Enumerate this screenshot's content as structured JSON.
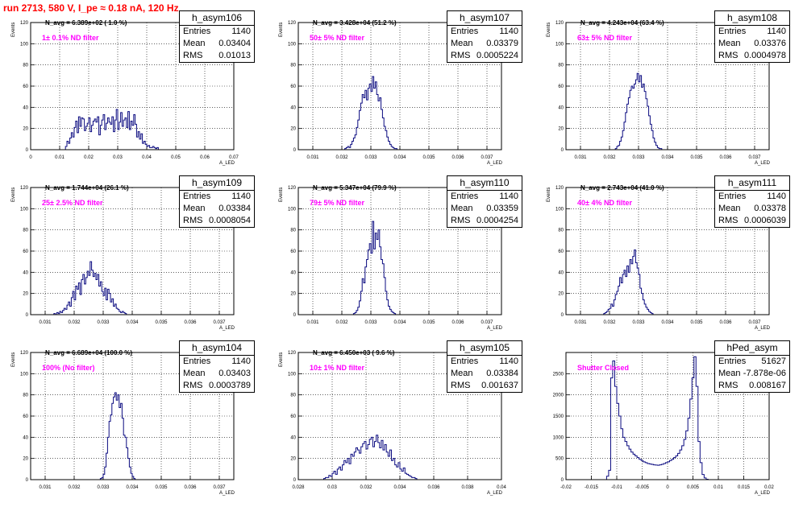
{
  "header": {
    "run_label": "run 2713,   580 V, I_pe ≈ 0.18 nA, 120 Hz"
  },
  "chart_data": [
    {
      "type": "histogram",
      "name": "h_asym106",
      "stats": {
        "entries_label": "Entries",
        "entries": "1140",
        "mean_label": "Mean",
        "mean": "0.03404",
        "rms_label": "RMS",
        "rms": "0.01013"
      },
      "n_avg_label": "N_avg = 6.389e+02 ( 1.0 %)",
      "filter_label": "1± 0.1% ND filter",
      "xlabel": "A_LED",
      "ylabel": "Events",
      "xlim": [
        0,
        0.07
      ],
      "ylim": [
        0,
        120
      ],
      "xticks": [
        "0",
        "0.01",
        "0.02",
        "0.03",
        "0.04",
        "0.05",
        "0.06",
        "0.07"
      ],
      "yticks": [
        "0",
        "20",
        "40",
        "60",
        "80",
        "100",
        "120"
      ],
      "bin_start": 0.012,
      "bin_width": 0.0005,
      "values": [
        3,
        8,
        6,
        11,
        16,
        12,
        21,
        27,
        16,
        31,
        22,
        30,
        29,
        18,
        22,
        25,
        30,
        17,
        23,
        27,
        29,
        26,
        31,
        14,
        23,
        28,
        33,
        19,
        25,
        30,
        26,
        24,
        31,
        17,
        28,
        38,
        19,
        26,
        35,
        22,
        28,
        30,
        21,
        36,
        19,
        27,
        23,
        33,
        24,
        12,
        17,
        10,
        15,
        6,
        8,
        5,
        3,
        4,
        2,
        2,
        3,
        2,
        1,
        2
      ]
    },
    {
      "type": "histogram",
      "name": "h_asym107",
      "stats": {
        "entries_label": "Entries",
        "entries": "1140",
        "mean_label": "Mean",
        "mean": "0.03379",
        "rms_label": "RMS",
        "rms": "0.0005224"
      },
      "n_avg_label": "N_avg = 3.428e+04 (51.2 %)",
      "filter_label": "50± 5% ND filter",
      "xlabel": "A_LED",
      "ylabel": "Events",
      "xlim": [
        0.0305,
        0.0375
      ],
      "ylim": [
        0,
        120
      ],
      "xticks": [
        "0.031",
        "0.032",
        "0.033",
        "0.034",
        "0.035",
        "0.036",
        "0.037"
      ],
      "yticks": [
        "0",
        "20",
        "40",
        "60",
        "80",
        "100",
        "120"
      ],
      "bin_start": 0.0321,
      "bin_width": 5e-05,
      "values": [
        1,
        2,
        3,
        2,
        5,
        8,
        11,
        14,
        21,
        28,
        37,
        44,
        52,
        49,
        56,
        47,
        58,
        62,
        55,
        69,
        58,
        64,
        52,
        46,
        49,
        38,
        30,
        22,
        18,
        12,
        8,
        5,
        3,
        2,
        1,
        1
      ]
    },
    {
      "type": "histogram",
      "name": "h_asym108",
      "stats": {
        "entries_label": "Entries",
        "entries": "1140",
        "mean_label": "Mean",
        "mean": "0.03376",
        "rms_label": "RMS",
        "rms": "0.0004978"
      },
      "n_avg_label": "N_avg = 4.243e+04 (63.4 %)",
      "filter_label": "63± 5% ND filter",
      "xlabel": "A_LED",
      "ylabel": "Events",
      "xlim": [
        0.0305,
        0.0375
      ],
      "ylim": [
        0,
        120
      ],
      "xticks": [
        "0.031",
        "0.032",
        "0.033",
        "0.034",
        "0.035",
        "0.036",
        "0.037"
      ],
      "yticks": [
        "0",
        "20",
        "40",
        "60",
        "80",
        "100",
        "120"
      ],
      "bin_start": 0.0322,
      "bin_width": 5e-05,
      "values": [
        1,
        3,
        4,
        8,
        12,
        18,
        26,
        35,
        43,
        49,
        56,
        60,
        58,
        62,
        66,
        72,
        64,
        70,
        59,
        62,
        55,
        48,
        41,
        32,
        24,
        18,
        11,
        7,
        4,
        2,
        1,
        1
      ]
    },
    {
      "type": "histogram",
      "name": "h_asym109",
      "stats": {
        "entries_label": "Entries",
        "entries": "1140",
        "mean_label": "Mean",
        "mean": "0.03384",
        "rms_label": "RMS",
        "rms": "0.0008054"
      },
      "n_avg_label": "N_avg = 1.744e+04 (26.1 %)",
      "filter_label": "25± 2.5% ND filter",
      "xlabel": "A_LED",
      "ylabel": "Events",
      "xlim": [
        0.0305,
        0.0375
      ],
      "ylim": [
        0,
        120
      ],
      "xticks": [
        "0.031",
        "0.032",
        "0.033",
        "0.034",
        "0.035",
        "0.036",
        "0.037"
      ],
      "yticks": [
        "0",
        "20",
        "40",
        "60",
        "80",
        "100",
        "120"
      ],
      "bin_start": 0.0313,
      "bin_width": 5e-05,
      "values": [
        1,
        0,
        2,
        1,
        3,
        2,
        4,
        6,
        5,
        9,
        12,
        8,
        16,
        22,
        14,
        27,
        24,
        30,
        19,
        33,
        38,
        29,
        35,
        41,
        37,
        50,
        42,
        36,
        39,
        33,
        38,
        27,
        31,
        22,
        18,
        25,
        14,
        24,
        20,
        12,
        15,
        8,
        10,
        6,
        5,
        3,
        2,
        3,
        2,
        1
      ]
    },
    {
      "type": "histogram",
      "name": "h_asym110",
      "stats": {
        "entries_label": "Entries",
        "entries": "1140",
        "mean_label": "Mean",
        "mean": "0.03359",
        "rms_label": "RMS",
        "rms": "0.0004254"
      },
      "n_avg_label": "N_avg = 5.347e+04 (79.9 %)",
      "filter_label": "79± 5% ND filter",
      "xlabel": "A_LED",
      "ylabel": "Events",
      "xlim": [
        0.0305,
        0.0375
      ],
      "ylim": [
        0,
        120
      ],
      "xticks": [
        "0.031",
        "0.032",
        "0.033",
        "0.034",
        "0.035",
        "0.036",
        "0.037"
      ],
      "yticks": [
        "0",
        "20",
        "40",
        "60",
        "80",
        "100",
        "120"
      ],
      "bin_start": 0.0324,
      "bin_width": 5e-05,
      "values": [
        1,
        2,
        4,
        7,
        13,
        22,
        34,
        30,
        45,
        52,
        61,
        67,
        58,
        88,
        62,
        77,
        71,
        80,
        64,
        52,
        48,
        35,
        22,
        14,
        8,
        5,
        3,
        2,
        1
      ]
    },
    {
      "type": "histogram",
      "name": "h_asym111",
      "stats": {
        "entries_label": "Entries",
        "entries": "1140",
        "mean_label": "Mean",
        "mean": "0.03378",
        "rms_label": "RMS",
        "rms": "0.0006039"
      },
      "n_avg_label": "N_avg = 2.743e+04 (41.0 %)",
      "filter_label": "40± 4% ND filter",
      "xlabel": "A_LED",
      "ylabel": "Events",
      "xlim": [
        0.0305,
        0.0375
      ],
      "ylim": [
        0,
        120
      ],
      "xticks": [
        "0.031",
        "0.032",
        "0.033",
        "0.034",
        "0.035",
        "0.036",
        "0.037"
      ],
      "yticks": [
        "0",
        "20",
        "40",
        "60",
        "80",
        "100",
        "120"
      ],
      "bin_start": 0.0318,
      "bin_width": 5e-05,
      "values": [
        1,
        2,
        3,
        5,
        6,
        10,
        8,
        14,
        19,
        22,
        27,
        35,
        30,
        38,
        42,
        36,
        46,
        40,
        52,
        48,
        55,
        61,
        49,
        44,
        38,
        25,
        20,
        14,
        10,
        7,
        5,
        3,
        2,
        1
      ]
    },
    {
      "type": "histogram",
      "name": "h_asym104",
      "stats": {
        "entries_label": "Entries",
        "entries": "1140",
        "mean_label": "Mean",
        "mean": "0.03403",
        "rms_label": "RMS",
        "rms": "0.0003789"
      },
      "n_avg_label": "N_avg = 6.689e+04 (100.0 %)",
      "filter_label": "100% (No filter)",
      "xlabel": "A_LED",
      "ylabel": "Events",
      "xlim": [
        0.0305,
        0.0375
      ],
      "ylim": [
        0,
        120
      ],
      "xticks": [
        "0.031",
        "0.032",
        "0.033",
        "0.034",
        "0.035",
        "0.036",
        "0.037"
      ],
      "yticks": [
        "0",
        "20",
        "40",
        "60",
        "80",
        "100",
        "120"
      ],
      "bin_start": 0.0329,
      "bin_width": 5e-05,
      "values": [
        1,
        2,
        5,
        12,
        25,
        40,
        55,
        61,
        72,
        78,
        82,
        75,
        80,
        68,
        72,
        58,
        42,
        40,
        30,
        20,
        12,
        6,
        3,
        1
      ]
    },
    {
      "type": "histogram",
      "name": "h_asym105",
      "stats": {
        "entries_label": "Entries",
        "entries": "1140",
        "mean_label": "Mean",
        "mean": "0.03384",
        "rms_label": "RMS",
        "rms": "0.001637"
      },
      "n_avg_label": "N_avg = 6.450e+03 ( 9.6 %)",
      "filter_label": "10± 1% ND filter",
      "xlabel": "A_LED",
      "ylabel": "Events",
      "xlim": [
        0.028,
        0.04
      ],
      "ylim": [
        0,
        120
      ],
      "xticks": [
        "0.028",
        "0.03",
        "0.032",
        "0.034",
        "0.036",
        "0.038",
        "0.04"
      ],
      "yticks": [
        "0",
        "20",
        "40",
        "60",
        "80",
        "100",
        "120"
      ],
      "bin_start": 0.0295,
      "bin_width": 0.0001,
      "values": [
        1,
        2,
        2,
        4,
        3,
        6,
        8,
        5,
        10,
        12,
        9,
        14,
        18,
        16,
        20,
        15,
        24,
        22,
        26,
        30,
        28,
        25,
        31,
        34,
        36,
        29,
        33,
        38,
        40,
        31,
        36,
        42,
        35,
        30,
        37,
        28,
        33,
        26,
        22,
        28,
        18,
        20,
        14,
        12,
        16,
        10,
        8,
        11,
        6,
        5,
        4,
        3,
        2,
        2,
        1
      ]
    },
    {
      "type": "histogram",
      "name": "hPed_asym",
      "stats": {
        "entries_label": "Entries",
        "entries": "51627",
        "mean_label": "Mean",
        "mean": "-7.878e-06",
        "rms_label": "RMS",
        "rms": "0.008167"
      },
      "n_avg_label": "",
      "filter_label": "Shutter Closed",
      "xlabel": "A_LED",
      "ylabel": "",
      "xlim": [
        -0.02,
        0.02
      ],
      "ylim": [
        0,
        3000
      ],
      "xticks": [
        "-0.02",
        "-0.015",
        "-0.01",
        "-0.005",
        "0",
        "0.005",
        "0.01",
        "0.015",
        "0.02"
      ],
      "yticks": [
        "0",
        "500",
        "1000",
        "1500",
        "2000",
        "2500"
      ],
      "bin_start": -0.012,
      "bin_width": 0.0004,
      "values": [
        80,
        220,
        2400,
        2800,
        2200,
        1800,
        1500,
        1200,
        1000,
        900,
        800,
        720,
        650,
        600,
        560,
        520,
        480,
        450,
        420,
        400,
        380,
        370,
        360,
        350,
        345,
        340,
        350,
        360,
        380,
        400,
        420,
        450,
        480,
        520,
        560,
        620,
        700,
        800,
        950,
        1150,
        1450,
        1900,
        2400,
        2900,
        2200,
        900,
        400,
        120,
        40,
        10
      ]
    }
  ]
}
